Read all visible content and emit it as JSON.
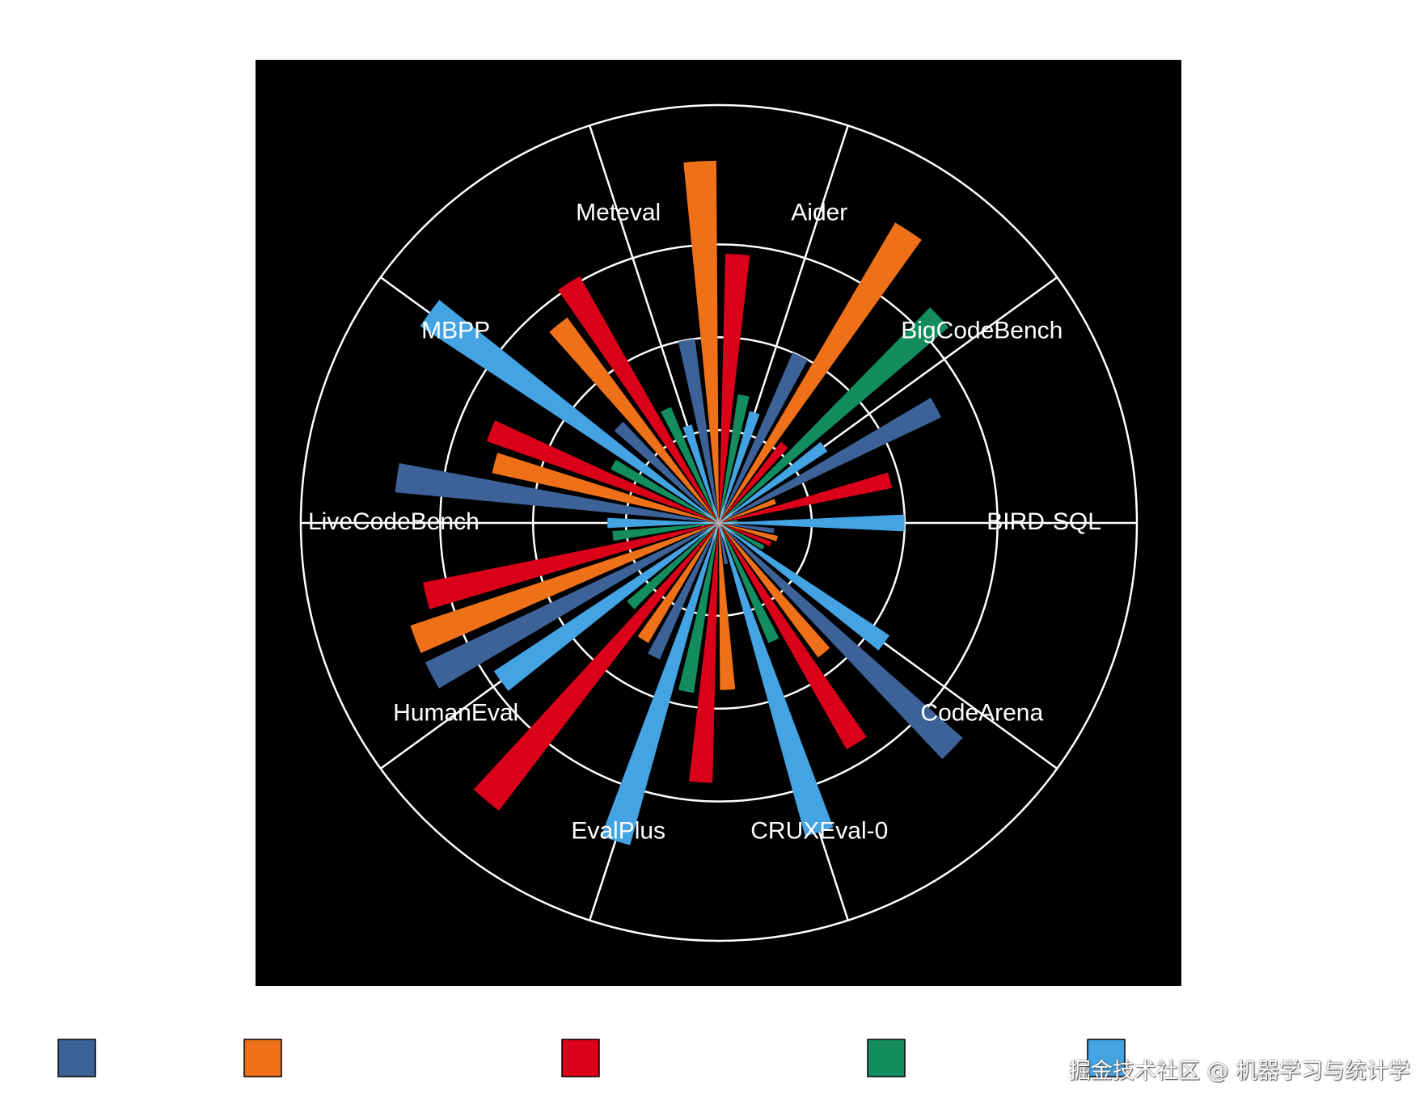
{
  "chart_data": {
    "type": "bar",
    "subtype": "polar-grouped-bar",
    "title": "",
    "categories": [
      "BIRD-SQL",
      "CodeArena",
      "CRUXEval-0",
      "EvalPlus",
      "HumanEval",
      "LiveCodeBench",
      "MBPP",
      "Meteval",
      "Aider",
      "BigCodeBench"
    ],
    "series": [
      {
        "color": "#3C6298",
        "values": [
          12,
          70,
          9,
          32,
          70,
          70,
          30,
          40,
          40,
          53
        ]
      },
      {
        "color": "#EE7119",
        "values": [
          13,
          36,
          36,
          30,
          70,
          50,
          55,
          78,
          75,
          13
        ]
      },
      {
        "color": "#DB0019",
        "values": [
          12,
          56,
          56,
          78,
          65,
          53,
          61,
          58,
          22,
          38
        ]
      },
      {
        "color": "#138D5F",
        "values": [
          11,
          28,
          37,
          26,
          23,
          26,
          27,
          28,
          65,
          4
        ]
      },
      {
        "color": "#44A3E3",
        "values": [
          44,
          70,
          72,
          58,
          24,
          77,
          22,
          25,
          28,
          40
        ]
      }
    ],
    "rlim": [
      0,
      90
    ],
    "radial_grid": [
      20,
      40,
      60,
      90
    ],
    "legend_placement": "bottom",
    "background": "#000000",
    "grid_color": "#FFFFFF"
  },
  "watermark": "掘金技术社区 @ 机器学习与统计学"
}
